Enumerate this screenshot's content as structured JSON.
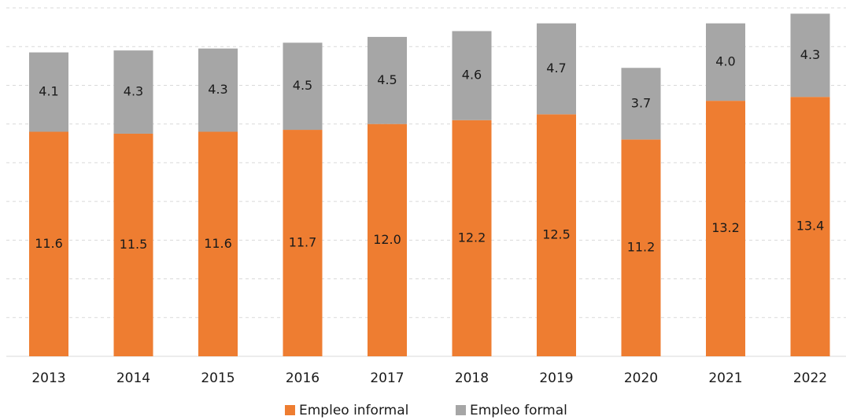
{
  "chart_data": {
    "type": "bar",
    "stacked": true,
    "categories": [
      "2013",
      "2014",
      "2015",
      "2016",
      "2017",
      "2018",
      "2019",
      "2020",
      "2021",
      "2022"
    ],
    "series": [
      {
        "name": "Empleo informal",
        "values": [
          11.6,
          11.5,
          11.6,
          11.7,
          12.0,
          12.2,
          12.5,
          11.2,
          13.2,
          13.4
        ],
        "color": "#ee7d31"
      },
      {
        "name": "Empleo formal",
        "values": [
          4.1,
          4.3,
          4.3,
          4.5,
          4.5,
          4.6,
          4.7,
          3.7,
          4.0,
          4.3
        ],
        "color": "#a6a6a6"
      }
    ],
    "title": "",
    "xlabel": "",
    "ylabel": "",
    "ylim": [
      0,
      18
    ],
    "grid": true,
    "legend": "bottom-center",
    "data_labels": true
  }
}
